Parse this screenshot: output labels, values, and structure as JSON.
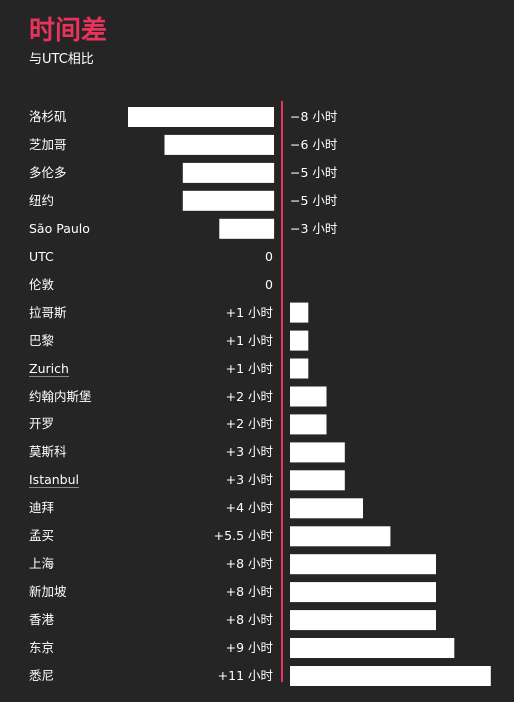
{
  "title": "时间差",
  "subtitle": "与UTC相比",
  "colors": {
    "accent": "#e8335c",
    "bar": "#ffffff",
    "background": "#252525"
  },
  "unit": "小时",
  "chart_data": {
    "type": "bar",
    "orientation": "horizontal",
    "title": "时间差",
    "subtitle": "与UTC相比",
    "xlabel": "",
    "ylabel": "",
    "xlim": [
      -8,
      11
    ],
    "categories": [
      "洛杉矶",
      "芝加哥",
      "多伦多",
      "纽约",
      "São Paulo",
      "UTC",
      "伦敦",
      "拉哥斯",
      "巴黎",
      "Zurich",
      "约翰内斯堡",
      "开罗",
      "莫斯科",
      "Istanbul",
      "迪拜",
      "孟买",
      "上海",
      "新加坡",
      "香港",
      "东京",
      "悉尼"
    ],
    "values": [
      -8,
      -6,
      -5,
      -5,
      -3,
      0,
      0,
      1,
      1,
      1,
      2,
      2,
      3,
      3,
      4,
      5.5,
      8,
      8,
      8,
      9,
      11
    ],
    "labels": [
      "−8 小时",
      "−6 小时",
      "−5 小时",
      "−5 小时",
      "−3 小时",
      "0",
      "0",
      "+1 小时",
      "+1 小时",
      "+1 小时",
      "+2 小时",
      "+2 小时",
      "+3 小时",
      "+3 小时",
      "+4 小时",
      "+5.5 小时",
      "+8 小时",
      "+8 小时",
      "+8 小时",
      "+9 小时",
      "+11 小时"
    ],
    "underlined": [
      false,
      false,
      false,
      false,
      false,
      false,
      false,
      false,
      false,
      true,
      false,
      false,
      false,
      true,
      false,
      false,
      false,
      false,
      false,
      false,
      false
    ]
  }
}
